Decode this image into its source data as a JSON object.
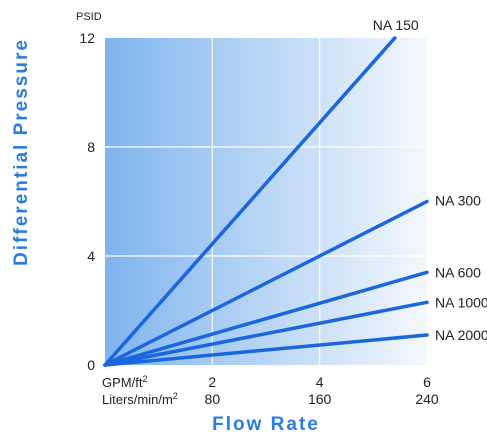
{
  "chart_data": {
    "type": "line",
    "ylabel": "Differential Pressure",
    "xlabel": "Flow Rate",
    "y_unit": "PSID",
    "ylim": [
      0,
      12
    ],
    "y_ticks": [
      "0",
      "4",
      "8",
      "12"
    ],
    "xlim": [
      0,
      6
    ],
    "x_ticks": [
      2,
      4,
      6
    ],
    "x_scales": [
      {
        "unit": "GPM/ft",
        "sup": "2",
        "tick_labels": [
          "2",
          "4",
          "6"
        ]
      },
      {
        "unit": "Liters/min/m",
        "sup": "2",
        "tick_labels": [
          "80",
          "160",
          "240"
        ]
      }
    ],
    "grid": true,
    "series": [
      {
        "name": "NA 150",
        "x": [
          0,
          5.4
        ],
        "y": [
          0,
          12
        ]
      },
      {
        "name": "NA 300",
        "x": [
          0,
          6.0
        ],
        "y": [
          0,
          6.0
        ]
      },
      {
        "name": "NA 600",
        "x": [
          0,
          6.0
        ],
        "y": [
          0,
          3.4
        ]
      },
      {
        "name": "NA 1000",
        "x": [
          0,
          6.0
        ],
        "y": [
          0,
          2.3
        ]
      },
      {
        "name": "NA 2000",
        "x": [
          0,
          6.0
        ],
        "y": [
          0,
          1.1
        ]
      }
    ],
    "colors": {
      "line": "#1a66dd",
      "title": "#2a7de0",
      "gradient_left": "#7fb4ee",
      "gradient_right": "#f4f8fd",
      "grid": "#ffffff"
    }
  }
}
